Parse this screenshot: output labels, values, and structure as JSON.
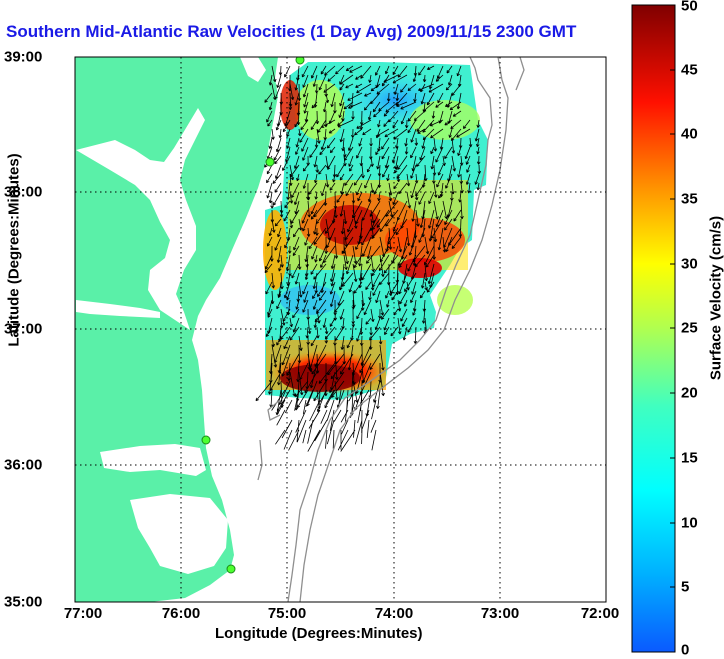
{
  "title": "Southern Mid-Atlantic Raw Velocities (1 Day Avg) 2009/11/15 2300 GMT",
  "x_axis": {
    "label": "Longitude (Degrees:Minutes)",
    "ticks": [
      "77:00",
      "76:00",
      "75:00",
      "74:00",
      "73:00",
      "72:00"
    ]
  },
  "y_axis": {
    "label": "Latitude (Degrees:Minutes)",
    "ticks": [
      "39:00",
      "38:00",
      "37:00",
      "36:00",
      "35:00"
    ]
  },
  "colorbar": {
    "label": "Surface Velocity (cm/s)",
    "ticks": [
      "50",
      "45",
      "40",
      "35",
      "30",
      "25",
      "20",
      "15",
      "10",
      "5",
      "0"
    ],
    "range": [
      0,
      50
    ],
    "colormap": "jet"
  },
  "map": {
    "extent_lon": [
      -77,
      -72
    ],
    "extent_lat": [
      35,
      39
    ],
    "land_color": "#5af0a8",
    "grid": "dotted",
    "radar_sites_color": "#4dff30",
    "bathymetry_color": "#909090"
  }
}
